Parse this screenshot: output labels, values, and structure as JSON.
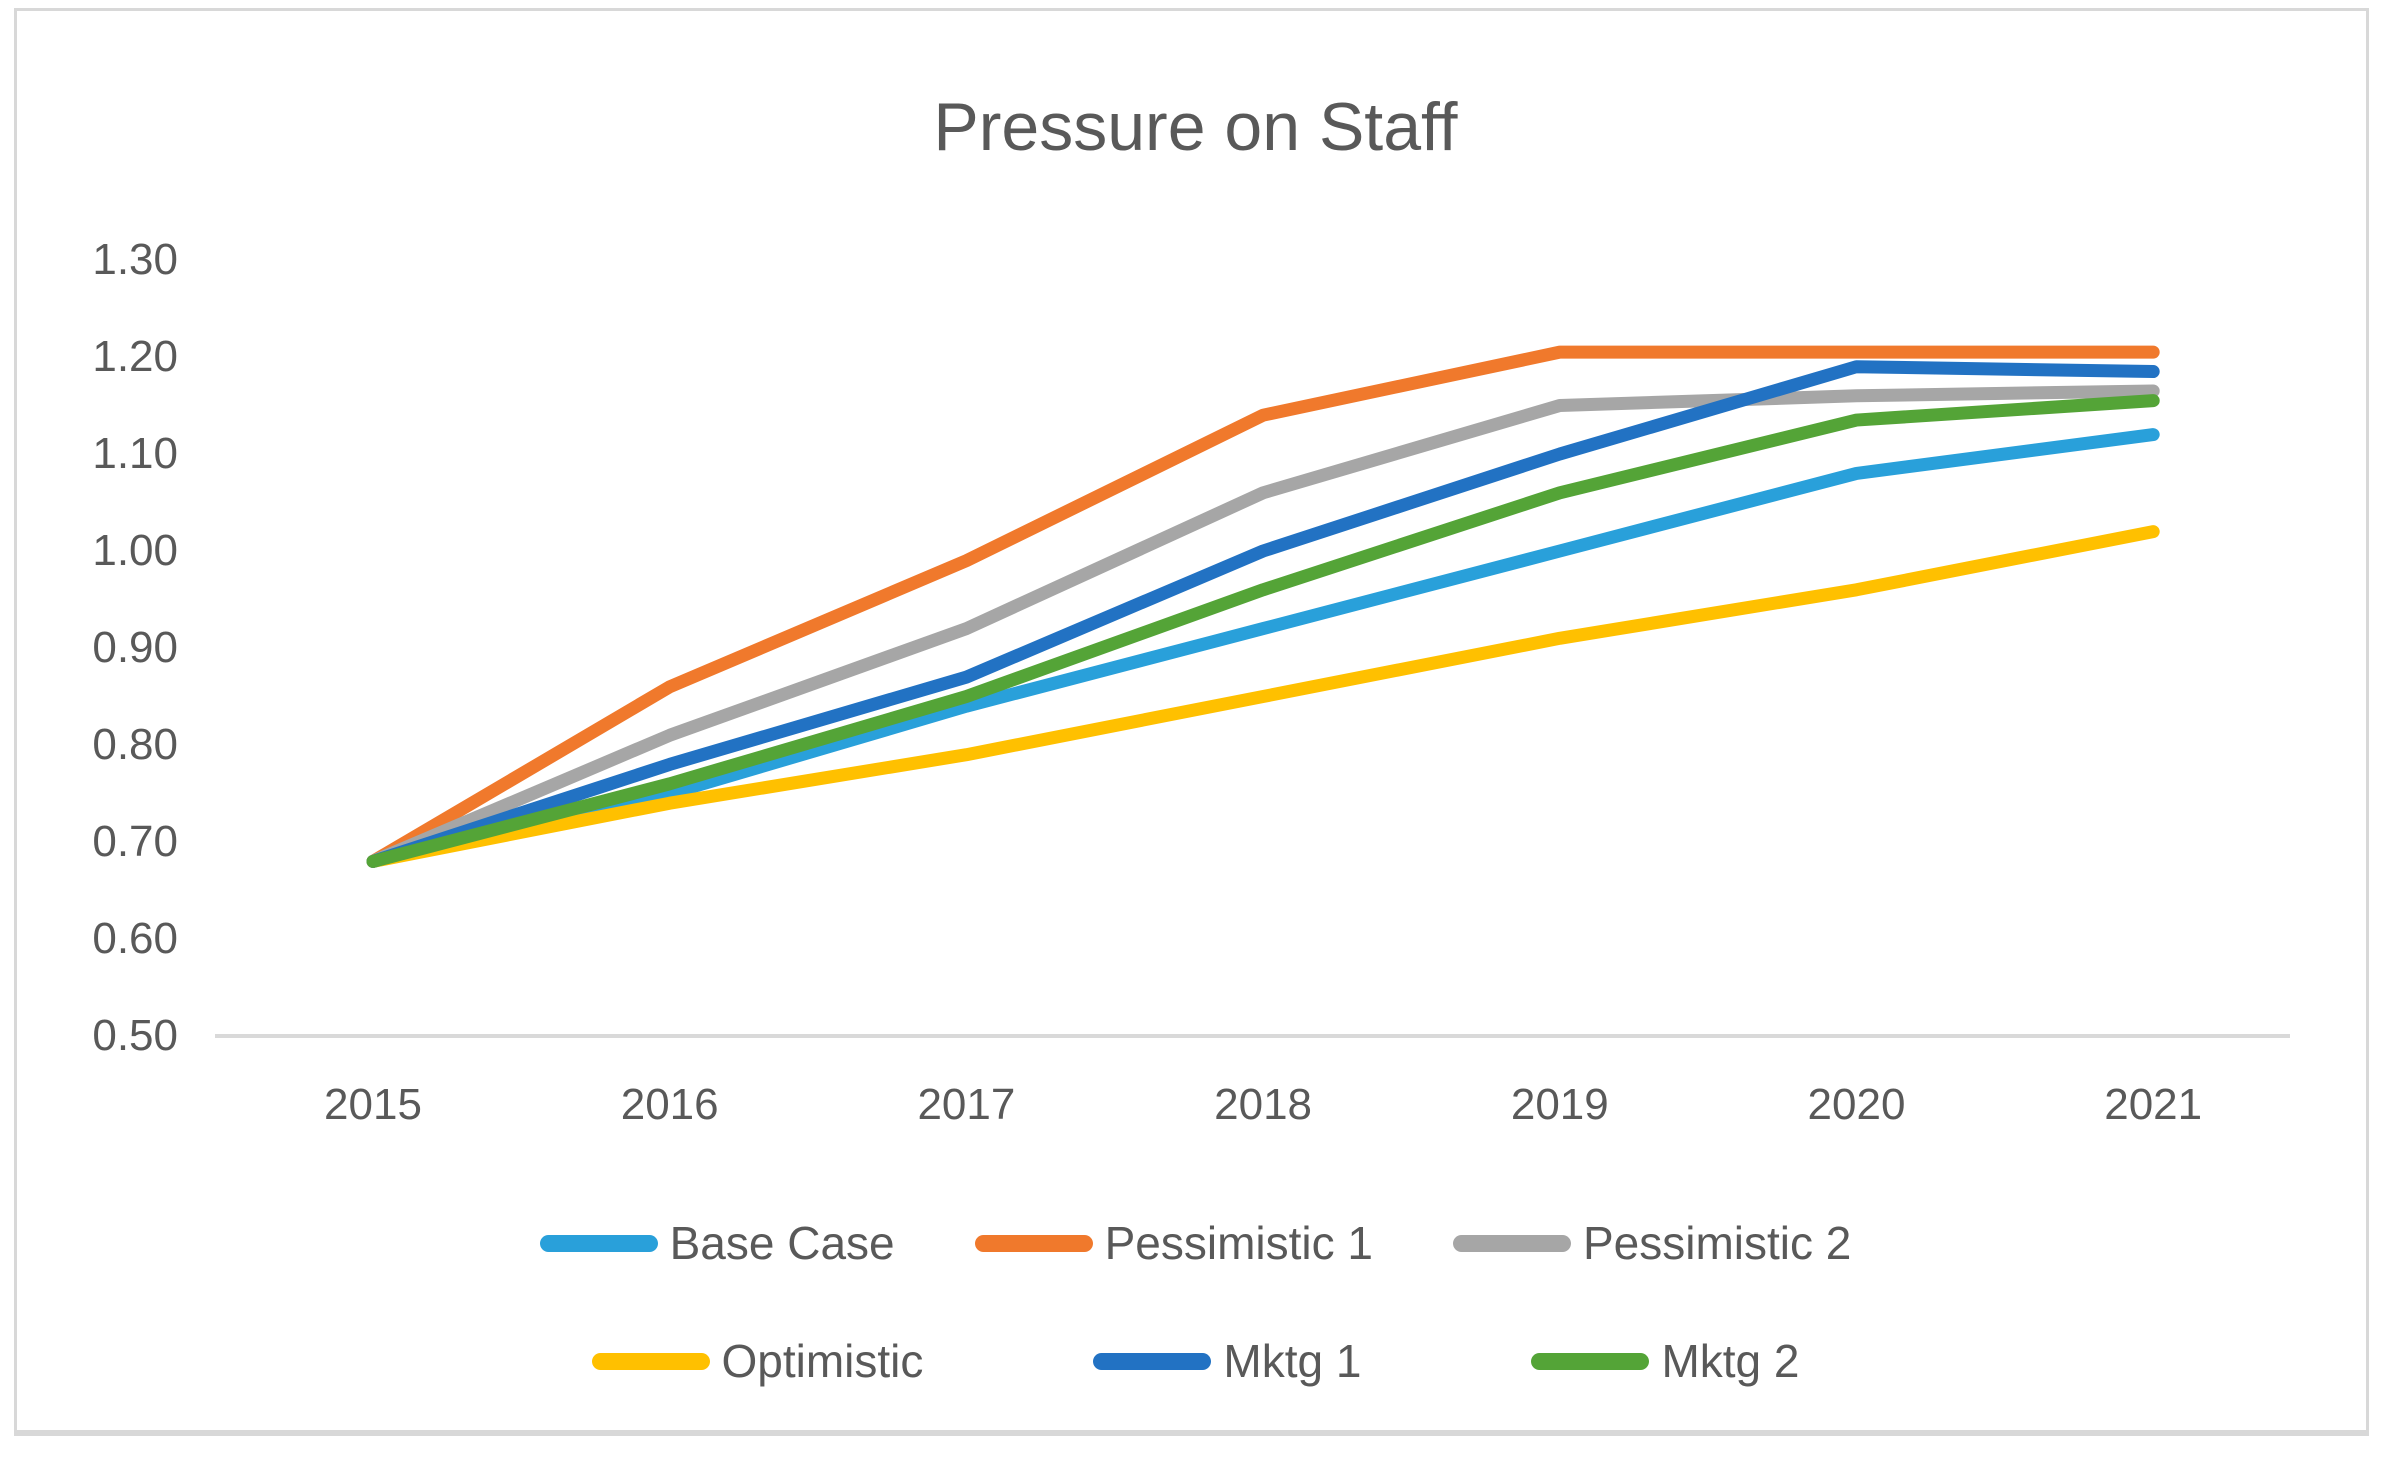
{
  "title": "Pressure on Staff",
  "colors": {
    "text": "#595959",
    "axis_line": "#d9d9d9",
    "frame_border": "#d8d8d8"
  },
  "chart_data": {
    "type": "line",
    "title": "Pressure on Staff",
    "xlabel": "",
    "ylabel": "",
    "x_tick_labels": [
      "2015",
      "2016",
      "2017",
      "2018",
      "2019",
      "2020",
      "2021"
    ],
    "y_tick_labels": [
      "1.30",
      "1.20",
      "1.10",
      "1.00",
      "0.90",
      "0.80",
      "0.70",
      "0.60",
      "0.50"
    ],
    "ylim": [
      0.5,
      1.3
    ],
    "grid": false,
    "legend_position": "bottom",
    "legend_rows": [
      [
        "Base Case",
        "Pessimistic 1",
        "Pessimistic 2"
      ],
      [
        "Optimistic",
        "Mktg 1",
        "Mktg 2"
      ]
    ],
    "series": [
      {
        "name": "Base Case",
        "color": "#29a0da",
        "values": [
          0.68,
          0.75,
          0.84,
          0.92,
          1.0,
          1.08,
          1.12
        ]
      },
      {
        "name": "Pessimistic 1",
        "color": "#f0792c",
        "values": [
          0.68,
          0.86,
          0.99,
          1.14,
          1.205,
          1.205,
          1.205
        ]
      },
      {
        "name": "Pessimistic 2",
        "color": "#a6a6a6",
        "values": [
          0.68,
          0.81,
          0.92,
          1.06,
          1.15,
          1.16,
          1.165
        ]
      },
      {
        "name": "Optimistic",
        "color": "#ffc000",
        "values": [
          0.68,
          0.74,
          0.79,
          0.85,
          0.91,
          0.96,
          1.02
        ]
      },
      {
        "name": "Mktg 1",
        "color": "#2272c3",
        "values": [
          0.68,
          0.78,
          0.87,
          1.0,
          1.1,
          1.19,
          1.185
        ]
      },
      {
        "name": "Mktg 2",
        "color": "#54a437",
        "values": [
          0.68,
          0.76,
          0.85,
          0.96,
          1.06,
          1.135,
          1.155
        ]
      }
    ]
  }
}
